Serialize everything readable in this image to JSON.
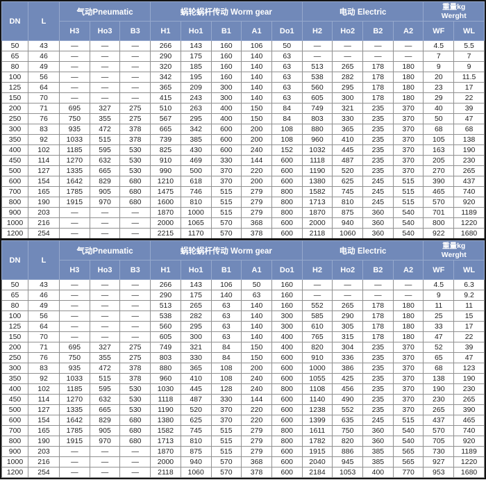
{
  "colors": {
    "header_bg": "#7189b9",
    "header_text": "#ffffff",
    "grid_line": "#8f8f8f",
    "outer_border": "#141414",
    "cell_bg": "#ffffff",
    "cell_text": "#1d1d1d"
  },
  "header": {
    "dn": "DN",
    "l": "L",
    "groups": [
      {
        "label": "气动Pneumatic",
        "sub": [
          "H3",
          "Ho3",
          "B3"
        ]
      },
      {
        "label": "蜗轮蜗杆传动 Worm gear",
        "sub": [
          "H1",
          "Ho1",
          "B1",
          "A1",
          "Do1"
        ]
      },
      {
        "label": "电动 Electric",
        "sub": [
          "H2",
          "Ho2",
          "B2",
          "A2"
        ]
      },
      {
        "label": "重量kg",
        "label2": "Werght",
        "sub": [
          "WF",
          "WL"
        ]
      }
    ]
  },
  "tables": [
    {
      "rows": [
        [
          "50",
          "43",
          "—",
          "—",
          "—",
          "266",
          "143",
          "160",
          "106",
          "50",
          "—",
          "—",
          "—",
          "—",
          "4.5",
          "5.5"
        ],
        [
          "65",
          "46",
          "—",
          "—",
          "—",
          "290",
          "175",
          "160",
          "140",
          "63",
          "—",
          "—",
          "—",
          "—",
          "7",
          "7"
        ],
        [
          "80",
          "49",
          "—",
          "—",
          "—",
          "320",
          "185",
          "160",
          "140",
          "63",
          "513",
          "265",
          "178",
          "180",
          "9",
          "9"
        ],
        [
          "100",
          "56",
          "—",
          "—",
          "—",
          "342",
          "195",
          "160",
          "140",
          "63",
          "538",
          "282",
          "178",
          "180",
          "20",
          "11.5"
        ],
        [
          "125",
          "64",
          "—",
          "—",
          "—",
          "365",
          "209",
          "300",
          "140",
          "63",
          "560",
          "295",
          "178",
          "180",
          "23",
          "17"
        ],
        [
          "150",
          "70",
          "—",
          "—",
          "—",
          "415",
          "243",
          "300",
          "140",
          "63",
          "605",
          "300",
          "178",
          "180",
          "29",
          "22"
        ],
        [
          "200",
          "71",
          "695",
          "327",
          "275",
          "510",
          "263",
          "400",
          "150",
          "84",
          "749",
          "321",
          "235",
          "370",
          "40",
          "39"
        ],
        [
          "250",
          "76",
          "750",
          "355",
          "275",
          "567",
          "295",
          "400",
          "150",
          "84",
          "803",
          "330",
          "235",
          "370",
          "50",
          "47"
        ],
        [
          "300",
          "83",
          "935",
          "472",
          "378",
          "665",
          "342",
          "600",
          "200",
          "108",
          "880",
          "365",
          "235",
          "370",
          "68",
          "68"
        ],
        [
          "350",
          "92",
          "1033",
          "515",
          "378",
          "739",
          "385",
          "600",
          "200",
          "108",
          "960",
          "410",
          "235",
          "370",
          "105",
          "138"
        ],
        [
          "400",
          "102",
          "1185",
          "595",
          "530",
          "825",
          "430",
          "600",
          "240",
          "152",
          "1032",
          "445",
          "235",
          "370",
          "163",
          "190"
        ],
        [
          "450",
          "114",
          "1270",
          "632",
          "530",
          "910",
          "469",
          "330",
          "144",
          "600",
          "1118",
          "487",
          "235",
          "370",
          "205",
          "230"
        ],
        [
          "500",
          "127",
          "1335",
          "665",
          "530",
          "990",
          "500",
          "370",
          "220",
          "600",
          "1190",
          "520",
          "235",
          "370",
          "270",
          "265"
        ],
        [
          "600",
          "154",
          "1642",
          "829",
          "680",
          "1210",
          "618",
          "370",
          "200",
          "600",
          "1380",
          "625",
          "245",
          "515",
          "390",
          "437"
        ],
        [
          "700",
          "165",
          "1785",
          "905",
          "680",
          "1475",
          "746",
          "515",
          "279",
          "800",
          "1582",
          "745",
          "245",
          "515",
          "465",
          "740"
        ],
        [
          "800",
          "190",
          "1915",
          "970",
          "680",
          "1600",
          "810",
          "515",
          "279",
          "800",
          "1713",
          "810",
          "245",
          "515",
          "570",
          "920"
        ],
        [
          "900",
          "203",
          "—",
          "—",
          "—",
          "1870",
          "1000",
          "515",
          "279",
          "800",
          "1870",
          "875",
          "360",
          "540",
          "701",
          "1189"
        ],
        [
          "1000",
          "216",
          "—",
          "—",
          "—",
          "2000",
          "1065",
          "570",
          "368",
          "600",
          "2000",
          "940",
          "360",
          "540",
          "800",
          "1220"
        ],
        [
          "1200",
          "254",
          "—",
          "—",
          "—",
          "2215",
          "1170",
          "570",
          "378",
          "600",
          "2118",
          "1060",
          "360",
          "540",
          "922",
          "1680"
        ]
      ]
    },
    {
      "rows": [
        [
          "50",
          "43",
          "—",
          "—",
          "—",
          "266",
          "143",
          "106",
          "50",
          "160",
          "—",
          "—",
          "—",
          "—",
          "4.5",
          "6.3"
        ],
        [
          "65",
          "46",
          "—",
          "—",
          "—",
          "290",
          "175",
          "140",
          "63",
          "160",
          "—",
          "—",
          "—",
          "—",
          "9",
          "9.2"
        ],
        [
          "80",
          "49",
          "—",
          "—",
          "—",
          "513",
          "265",
          "63",
          "140",
          "160",
          "552",
          "265",
          "178",
          "180",
          "11",
          "11"
        ],
        [
          "100",
          "56",
          "—",
          "—",
          "—",
          "538",
          "282",
          "63",
          "140",
          "300",
          "585",
          "290",
          "178",
          "180",
          "25",
          "15"
        ],
        [
          "125",
          "64",
          "—",
          "—",
          "—",
          "560",
          "295",
          "63",
          "140",
          "300",
          "610",
          "305",
          "178",
          "180",
          "33",
          "17"
        ],
        [
          "150",
          "70",
          "—",
          "—",
          "—",
          "605",
          "300",
          "63",
          "140",
          "400",
          "765",
          "315",
          "178",
          "180",
          "47",
          "22"
        ],
        [
          "200",
          "71",
          "695",
          "327",
          "275",
          "749",
          "321",
          "84",
          "150",
          "400",
          "820",
          "304",
          "235",
          "370",
          "52",
          "39"
        ],
        [
          "250",
          "76",
          "750",
          "355",
          "275",
          "803",
          "330",
          "84",
          "150",
          "600",
          "910",
          "336",
          "235",
          "370",
          "65",
          "47"
        ],
        [
          "300",
          "83",
          "935",
          "472",
          "378",
          "880",
          "365",
          "108",
          "200",
          "600",
          "1000",
          "386",
          "235",
          "370",
          "68",
          "123"
        ],
        [
          "350",
          "92",
          "1033",
          "515",
          "378",
          "960",
          "410",
          "108",
          "240",
          "600",
          "1055",
          "425",
          "235",
          "370",
          "138",
          "190"
        ],
        [
          "400",
          "102",
          "1185",
          "595",
          "530",
          "1030",
          "445",
          "128",
          "240",
          "800",
          "1108",
          "456",
          "235",
          "370",
          "190",
          "230"
        ],
        [
          "450",
          "114",
          "1270",
          "632",
          "530",
          "1118",
          "487",
          "330",
          "144",
          "600",
          "1140",
          "490",
          "235",
          "370",
          "230",
          "265"
        ],
        [
          "500",
          "127",
          "1335",
          "665",
          "530",
          "1190",
          "520",
          "370",
          "220",
          "600",
          "1238",
          "552",
          "235",
          "370",
          "265",
          "390"
        ],
        [
          "600",
          "154",
          "1642",
          "829",
          "680",
          "1380",
          "625",
          "370",
          "220",
          "600",
          "1399",
          "635",
          "245",
          "515",
          "437",
          "465"
        ],
        [
          "700",
          "165",
          "1785",
          "905",
          "680",
          "1582",
          "745",
          "515",
          "279",
          "800",
          "1611",
          "750",
          "360",
          "540",
          "570",
          "740"
        ],
        [
          "800",
          "190",
          "1915",
          "970",
          "680",
          "1713",
          "810",
          "515",
          "279",
          "800",
          "1782",
          "820",
          "360",
          "540",
          "705",
          "920"
        ],
        [
          "900",
          "203",
          "—",
          "—",
          "—",
          "1870",
          "875",
          "515",
          "279",
          "600",
          "1915",
          "886",
          "385",
          "565",
          "730",
          "1189"
        ],
        [
          "1000",
          "216",
          "—",
          "—",
          "—",
          "2000",
          "940",
          "570",
          "368",
          "600",
          "2040",
          "945",
          "385",
          "565",
          "927",
          "1220"
        ],
        [
          "1200",
          "254",
          "—",
          "—",
          "—",
          "2118",
          "1060",
          "570",
          "378",
          "600",
          "2184",
          "1053",
          "400",
          "770",
          "953",
          "1680"
        ]
      ]
    }
  ]
}
